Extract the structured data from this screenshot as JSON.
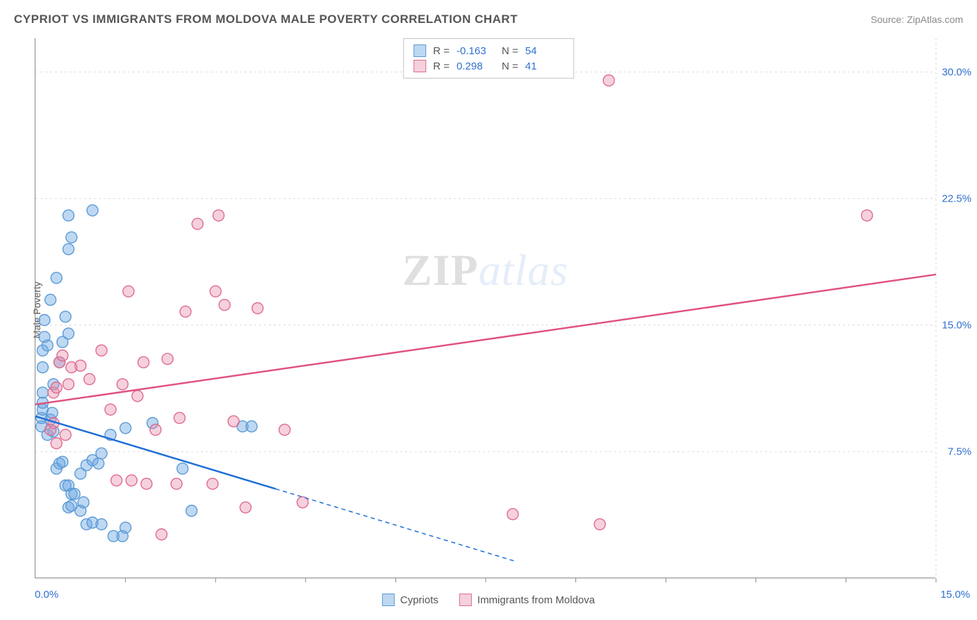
{
  "header": {
    "title": "CYPRIOT VS IMMIGRANTS FROM MOLDOVA MALE POVERTY CORRELATION CHART",
    "source": "Source: ZipAtlas.com"
  },
  "watermark": {
    "part1": "ZIP",
    "part2": "atlas"
  },
  "axes": {
    "y_label": "Male Poverty",
    "y_ticks": [
      {
        "value": 7.5,
        "label": "7.5%"
      },
      {
        "value": 15.0,
        "label": "15.0%"
      },
      {
        "value": 22.5,
        "label": "22.5%"
      },
      {
        "value": 30.0,
        "label": "30.0%"
      }
    ],
    "y_min": 0.0,
    "y_max": 32.0,
    "x_min": 0.0,
    "x_max": 15.0,
    "x_origin_label": "0.0%",
    "x_end_label": "15.0%",
    "x_tick_positions": [
      1.5,
      3.0,
      4.5,
      6.0,
      7.5,
      9.0,
      10.5,
      12.0,
      13.5,
      15.0
    ],
    "grid_color": "#d9d9d9",
    "tick_color": "#888"
  },
  "stats": {
    "rows": [
      {
        "swatch": "blue",
        "r_label": "R =",
        "r": "-0.163",
        "n_label": "N =",
        "n": "54"
      },
      {
        "swatch": "pink",
        "r_label": "R =",
        "r": "0.298",
        "n_label": "N =",
        "n": "41"
      }
    ]
  },
  "legend": {
    "items": [
      {
        "swatch": "blue",
        "label": "Cypriots"
      },
      {
        "swatch": "pink",
        "label": "Immigrants from Moldova"
      }
    ]
  },
  "style": {
    "point_radius": 8,
    "blue_fill": "rgba(111,168,227,0.45)",
    "blue_stroke": "#5a9ad6",
    "pink_fill": "rgba(231,140,170,0.40)",
    "pink_stroke": "#e06a8f",
    "blue_line": "#1e6fd6",
    "pink_line": "#e0527e",
    "line_width": 2.5,
    "dash_pattern": "6,5"
  },
  "trend_lines": {
    "blue": {
      "x1": 0.0,
      "y1": 9.6,
      "solid_x2": 4.0,
      "solid_y2": 5.3,
      "dash_x2": 8.0,
      "dash_y2": 1.0
    },
    "pink": {
      "x1": 0.0,
      "y1": 10.3,
      "x2": 15.0,
      "y2": 18.0
    }
  },
  "series": {
    "cypriots": [
      {
        "x": 0.1,
        "y": 9.0
      },
      {
        "x": 0.1,
        "y": 9.5
      },
      {
        "x": 0.12,
        "y": 10.0
      },
      {
        "x": 0.12,
        "y": 10.4
      },
      {
        "x": 0.12,
        "y": 11.0
      },
      {
        "x": 0.12,
        "y": 12.5
      },
      {
        "x": 0.12,
        "y": 13.5
      },
      {
        "x": 0.2,
        "y": 13.8
      },
      {
        "x": 0.15,
        "y": 14.3
      },
      {
        "x": 0.15,
        "y": 15.3
      },
      {
        "x": 0.25,
        "y": 16.5
      },
      {
        "x": 0.35,
        "y": 17.8
      },
      {
        "x": 0.55,
        "y": 19.5
      },
      {
        "x": 0.6,
        "y": 20.2
      },
      {
        "x": 0.55,
        "y": 21.5
      },
      {
        "x": 0.95,
        "y": 21.8
      },
      {
        "x": 0.2,
        "y": 8.5
      },
      {
        "x": 0.3,
        "y": 8.7
      },
      {
        "x": 0.25,
        "y": 9.4
      },
      {
        "x": 0.28,
        "y": 9.8
      },
      {
        "x": 0.3,
        "y": 11.5
      },
      {
        "x": 0.4,
        "y": 12.8
      },
      {
        "x": 0.45,
        "y": 14.0
      },
      {
        "x": 0.55,
        "y": 14.5
      },
      {
        "x": 0.5,
        "y": 15.5
      },
      {
        "x": 0.35,
        "y": 6.5
      },
      {
        "x": 0.4,
        "y": 6.8
      },
      {
        "x": 0.45,
        "y": 6.9
      },
      {
        "x": 0.5,
        "y": 5.5
      },
      {
        "x": 0.55,
        "y": 5.5
      },
      {
        "x": 0.6,
        "y": 5.0
      },
      {
        "x": 0.65,
        "y": 5.0
      },
      {
        "x": 0.55,
        "y": 4.2
      },
      {
        "x": 0.6,
        "y": 4.3
      },
      {
        "x": 0.75,
        "y": 4.0
      },
      {
        "x": 0.8,
        "y": 4.5
      },
      {
        "x": 0.85,
        "y": 3.2
      },
      {
        "x": 0.95,
        "y": 3.3
      },
      {
        "x": 1.1,
        "y": 3.2
      },
      {
        "x": 1.3,
        "y": 2.5
      },
      {
        "x": 1.45,
        "y": 2.5
      },
      {
        "x": 1.5,
        "y": 3.0
      },
      {
        "x": 0.75,
        "y": 6.2
      },
      {
        "x": 0.85,
        "y": 6.7
      },
      {
        "x": 0.95,
        "y": 7.0
      },
      {
        "x": 1.05,
        "y": 6.8
      },
      {
        "x": 1.1,
        "y": 7.4
      },
      {
        "x": 1.25,
        "y": 8.5
      },
      {
        "x": 1.5,
        "y": 8.9
      },
      {
        "x": 1.95,
        "y": 9.2
      },
      {
        "x": 2.45,
        "y": 6.5
      },
      {
        "x": 2.6,
        "y": 4.0
      },
      {
        "x": 3.45,
        "y": 9.0
      },
      {
        "x": 3.6,
        "y": 9.0
      }
    ],
    "moldova": [
      {
        "x": 0.25,
        "y": 8.8
      },
      {
        "x": 0.3,
        "y": 9.2
      },
      {
        "x": 0.3,
        "y": 11.0
      },
      {
        "x": 0.35,
        "y": 11.3
      },
      {
        "x": 0.4,
        "y": 12.8
      },
      {
        "x": 0.45,
        "y": 13.2
      },
      {
        "x": 0.55,
        "y": 11.5
      },
      {
        "x": 0.6,
        "y": 12.5
      },
      {
        "x": 0.75,
        "y": 12.6
      },
      {
        "x": 0.9,
        "y": 11.8
      },
      {
        "x": 1.1,
        "y": 13.5
      },
      {
        "x": 1.25,
        "y": 10.0
      },
      {
        "x": 1.45,
        "y": 11.5
      },
      {
        "x": 1.55,
        "y": 17.0
      },
      {
        "x": 1.7,
        "y": 10.8
      },
      {
        "x": 1.8,
        "y": 12.8
      },
      {
        "x": 2.0,
        "y": 8.8
      },
      {
        "x": 2.2,
        "y": 13.0
      },
      {
        "x": 2.4,
        "y": 9.5
      },
      {
        "x": 2.5,
        "y": 15.8
      },
      {
        "x": 2.7,
        "y": 21.0
      },
      {
        "x": 3.0,
        "y": 17.0
      },
      {
        "x": 3.05,
        "y": 21.5
      },
      {
        "x": 3.15,
        "y": 16.2
      },
      {
        "x": 3.3,
        "y": 9.3
      },
      {
        "x": 3.7,
        "y": 16.0
      },
      {
        "x": 4.15,
        "y": 8.8
      },
      {
        "x": 4.45,
        "y": 4.5
      },
      {
        "x": 1.35,
        "y": 5.8
      },
      {
        "x": 1.6,
        "y": 5.8
      },
      {
        "x": 1.85,
        "y": 5.6
      },
      {
        "x": 2.35,
        "y": 5.6
      },
      {
        "x": 2.95,
        "y": 5.6
      },
      {
        "x": 2.1,
        "y": 2.6
      },
      {
        "x": 3.5,
        "y": 4.2
      },
      {
        "x": 0.35,
        "y": 8.0
      },
      {
        "x": 0.5,
        "y": 8.5
      },
      {
        "x": 7.95,
        "y": 3.8
      },
      {
        "x": 9.4,
        "y": 3.2
      },
      {
        "x": 9.55,
        "y": 29.5
      },
      {
        "x": 13.85,
        "y": 21.5
      }
    ]
  }
}
